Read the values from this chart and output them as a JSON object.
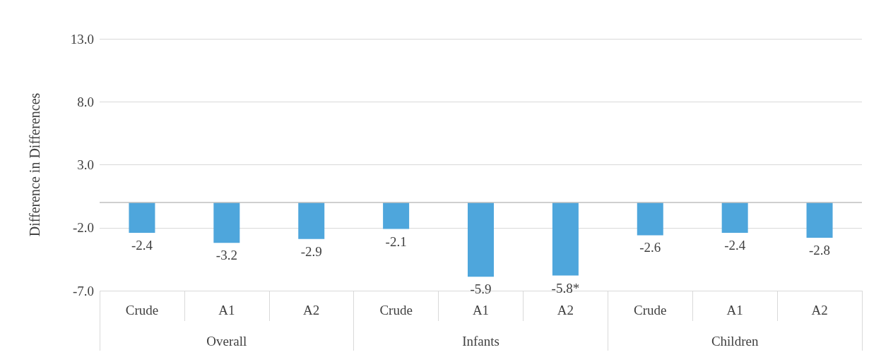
{
  "chart_data": {
    "type": "bar",
    "ylabel": "Difference in Differences",
    "categories": [
      "Crude",
      "A1",
      "A2",
      "Crude",
      "A1",
      "A2",
      "Crude",
      "A1",
      "A2"
    ],
    "values": [
      -2.4,
      -3.2,
      -2.9,
      -2.1,
      -5.9,
      -5.8,
      -2.6,
      -2.4,
      -2.8
    ],
    "value_labels": [
      "-2.4",
      "-3.2",
      "-2.9",
      "-2.1",
      "-5.9",
      "-5.8*",
      "-2.6",
      "-2.4",
      "-2.8"
    ],
    "color": "#4ea6dc",
    "annotations": [
      "Overall",
      "Infants",
      "Children"
    ],
    "ylim": [
      -7,
      13
    ],
    "yticks": [
      {
        "value": -7,
        "label": "-7.0"
      },
      {
        "value": -2,
        "label": "-2.0"
      },
      {
        "value": 3,
        "label": "3.0"
      },
      {
        "value": 8,
        "label": "8.0"
      },
      {
        "value": 13,
        "label": "13.0"
      }
    ],
    "ref_lines": [
      {
        "axis": "y",
        "value": 0,
        "color": "#bfbfbf"
      }
    ],
    "grid": "y"
  }
}
